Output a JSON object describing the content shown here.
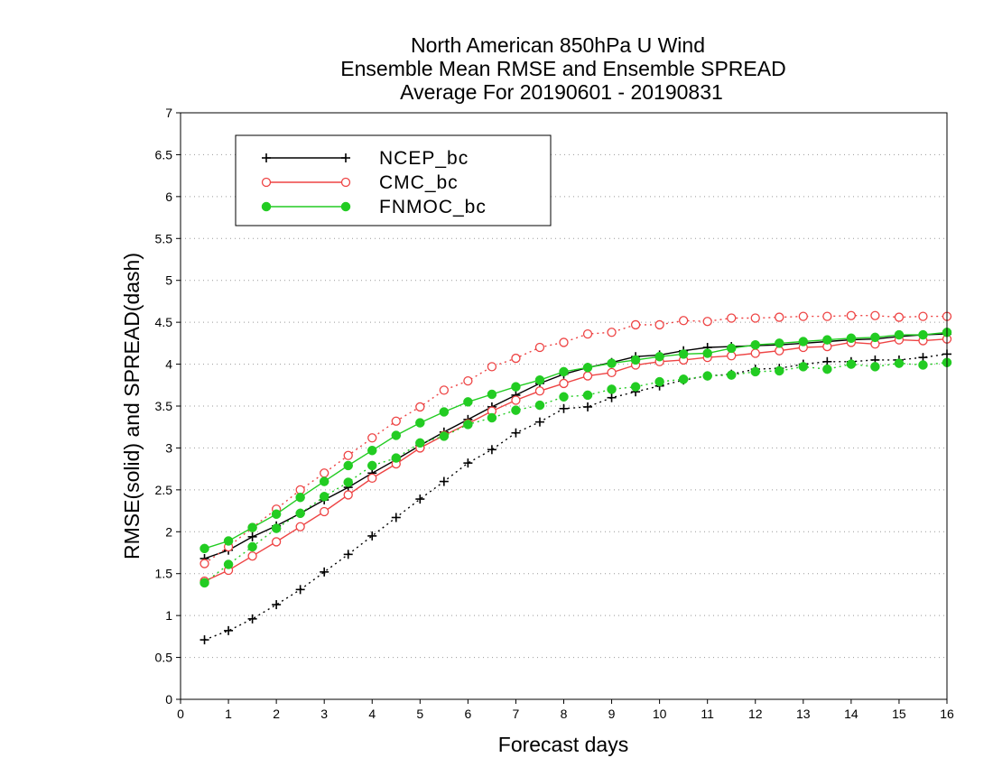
{
  "chart_data": {
    "type": "line",
    "title": [
      "North American 850hPa U Wind",
      "Ensemble Mean RMSE and Ensemble SPREAD",
      "Average For 20190601 - 20190831"
    ],
    "xlabel": "Forecast days",
    "ylabel": "RMSE(solid) and SPREAD(dash)",
    "xlim": [
      0,
      16
    ],
    "ylim": [
      0,
      7
    ],
    "xticks": [
      0,
      1,
      2,
      3,
      4,
      5,
      6,
      7,
      8,
      9,
      10,
      11,
      12,
      13,
      14,
      15,
      16
    ],
    "yticks": [
      0,
      0.5,
      1,
      1.5,
      2,
      2.5,
      3,
      3.5,
      4,
      4.5,
      5,
      5.5,
      6,
      6.5,
      7
    ],
    "ytick_labels": [
      "0",
      "0.5",
      "1",
      "1.5",
      "2",
      "2.5",
      "3",
      "3.5",
      "4",
      "4.5",
      "5",
      "5.5",
      "6",
      "6.5",
      "7"
    ],
    "grid": "horizontal-dotted",
    "legend_position": "top-left",
    "x": [
      0.5,
      1,
      1.5,
      2,
      2.5,
      3,
      3.5,
      4,
      4.5,
      5,
      5.5,
      6,
      6.5,
      7,
      7.5,
      8,
      8.5,
      9,
      9.5,
      10,
      10.5,
      11,
      11.5,
      12,
      12.5,
      13,
      13.5,
      14,
      14.5,
      15,
      15.5,
      16
    ],
    "series": [
      {
        "name": "NCEP_bc",
        "color": "#000000",
        "marker": "plus",
        "rmse": [
          1.68,
          1.78,
          1.94,
          2.07,
          2.22,
          2.38,
          2.53,
          2.7,
          2.86,
          3.03,
          3.19,
          3.34,
          3.49,
          3.63,
          3.77,
          3.88,
          3.96,
          4.02,
          4.09,
          4.11,
          4.16,
          4.2,
          4.21,
          4.22,
          4.23,
          4.25,
          4.27,
          4.29,
          4.3,
          4.33,
          4.35,
          4.36
        ],
        "spread": [
          0.71,
          0.82,
          0.96,
          1.13,
          1.31,
          1.52,
          1.73,
          1.95,
          2.17,
          2.39,
          2.6,
          2.82,
          2.98,
          3.18,
          3.31,
          3.47,
          3.49,
          3.6,
          3.67,
          3.74,
          3.81,
          3.86,
          3.88,
          3.94,
          3.95,
          4.0,
          4.03,
          4.03,
          4.05,
          4.05,
          4.08,
          4.12
        ]
      },
      {
        "name": "CMC_bc",
        "color": "#ee4444",
        "marker": "open-circle",
        "rmse": [
          1.41,
          1.54,
          1.71,
          1.88,
          2.06,
          2.24,
          2.44,
          2.64,
          2.81,
          3.0,
          3.15,
          3.29,
          3.44,
          3.57,
          3.68,
          3.77,
          3.86,
          3.9,
          3.99,
          4.03,
          4.05,
          4.08,
          4.1,
          4.13,
          4.16,
          4.2,
          4.21,
          4.26,
          4.24,
          4.29,
          4.28,
          4.3
        ],
        "spread": [
          1.62,
          1.82,
          2.05,
          2.27,
          2.5,
          2.7,
          2.91,
          3.12,
          3.32,
          3.49,
          3.69,
          3.8,
          3.97,
          4.07,
          4.2,
          4.26,
          4.36,
          4.38,
          4.47,
          4.47,
          4.52,
          4.51,
          4.55,
          4.55,
          4.56,
          4.57,
          4.57,
          4.58,
          4.58,
          4.56,
          4.57,
          4.57
        ]
      },
      {
        "name": "FNMOC_bc",
        "color": "#22cc22",
        "marker": "filled-circle",
        "rmse": [
          1.8,
          1.89,
          2.05,
          2.21,
          2.41,
          2.6,
          2.79,
          2.97,
          3.15,
          3.3,
          3.43,
          3.55,
          3.64,
          3.73,
          3.81,
          3.91,
          3.96,
          4.01,
          4.05,
          4.09,
          4.12,
          4.13,
          4.19,
          4.23,
          4.25,
          4.27,
          4.29,
          4.31,
          4.32,
          4.35,
          4.35,
          4.38
        ],
        "spread": [
          1.39,
          1.61,
          1.82,
          2.04,
          2.22,
          2.42,
          2.59,
          2.79,
          2.88,
          3.06,
          3.14,
          3.28,
          3.36,
          3.45,
          3.51,
          3.61,
          3.63,
          3.7,
          3.73,
          3.79,
          3.82,
          3.86,
          3.87,
          3.91,
          3.92,
          3.97,
          3.94,
          4.0,
          3.97,
          4.01,
          3.99,
          4.02
        ]
      }
    ]
  }
}
